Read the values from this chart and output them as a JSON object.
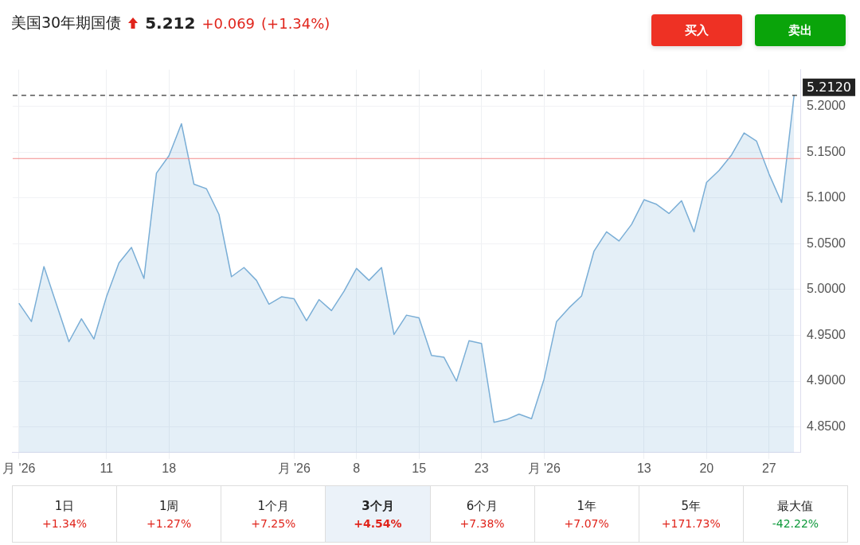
{
  "chart_data": {
    "type": "area",
    "title": "美国30年期国债",
    "annotations": [
      "5.212",
      "+0.069",
      "(+1.34%)",
      "买入",
      "卖出",
      "1日",
      "+1.34%",
      "1周",
      "+1.27%",
      "1个月",
      "+7.25%",
      "3个月",
      "+4.54%",
      "6个月",
      "+7.38%",
      "1年",
      "+7.07%",
      "5年",
      "+171.73%",
      "最大值",
      "-42.22%"
    ],
    "categories": [
      "月 '26",
      null,
      null,
      null,
      null,
      null,
      null,
      "11",
      null,
      null,
      null,
      null,
      "18",
      null,
      null,
      null,
      null,
      null,
      null,
      null,
      null,
      null,
      "月 '26",
      null,
      null,
      null,
      null,
      "8",
      null,
      null,
      null,
      null,
      "15",
      null,
      null,
      null,
      null,
      "23",
      null,
      null,
      null,
      null,
      "月 '26",
      null,
      null,
      null,
      null,
      null,
      null,
      null,
      "13",
      null,
      null,
      null,
      null,
      "20",
      null,
      null,
      null,
      null,
      "27",
      null,
      null
    ],
    "series": [
      {
        "color": "#7aaed6",
        "values": [
          4.985,
          4.965,
          5.025,
          4.984,
          4.943,
          4.968,
          4.946,
          4.992,
          5.029,
          5.046,
          5.012,
          5.127,
          5.146,
          5.181,
          5.115,
          5.11,
          5.082,
          5.014,
          5.024,
          5.01,
          4.984,
          4.992,
          4.99,
          4.966,
          4.989,
          4.977,
          4.998,
          5.023,
          5.01,
          5.024,
          4.951,
          4.972,
          4.969,
          4.928,
          4.926,
          4.9,
          4.944,
          4.941,
          4.855,
          4.858,
          4.864,
          4.859,
          4.902,
          4.965,
          4.98,
          4.993,
          5.042,
          5.063,
          5.053,
          5.071,
          5.098,
          5.093,
          5.083,
          5.097,
          5.063,
          5.117,
          5.13,
          5.147,
          5.171,
          5.162,
          5.126,
          5.095,
          5.212
        ]
      }
    ],
    "ylim": [
      4.822,
      5.24
    ],
    "yticks": [
      {
        "value": 4.85,
        "label": "4.8500"
      },
      {
        "value": 4.9,
        "label": "4.9000"
      },
      {
        "value": 4.95,
        "label": "4.9500"
      },
      {
        "value": 5.0,
        "label": "5.0000"
      },
      {
        "value": 5.05,
        "label": "5.0500"
      },
      {
        "value": 5.1,
        "label": "5.1000"
      },
      {
        "value": 5.15,
        "label": "5.1500"
      },
      {
        "value": 5.2,
        "label": "5.2000"
      }
    ],
    "ref_lines": [
      {
        "axis": "y",
        "value": 5.212,
        "label": "5.2120",
        "color": "#333333",
        "line_style": "dashed"
      },
      {
        "axis": "y",
        "value": 5.143,
        "color": "#f28b8b",
        "line_style": "solid"
      }
    ],
    "grid": true,
    "legend": false,
    "marker": "none",
    "line_style": "solid"
  }
}
